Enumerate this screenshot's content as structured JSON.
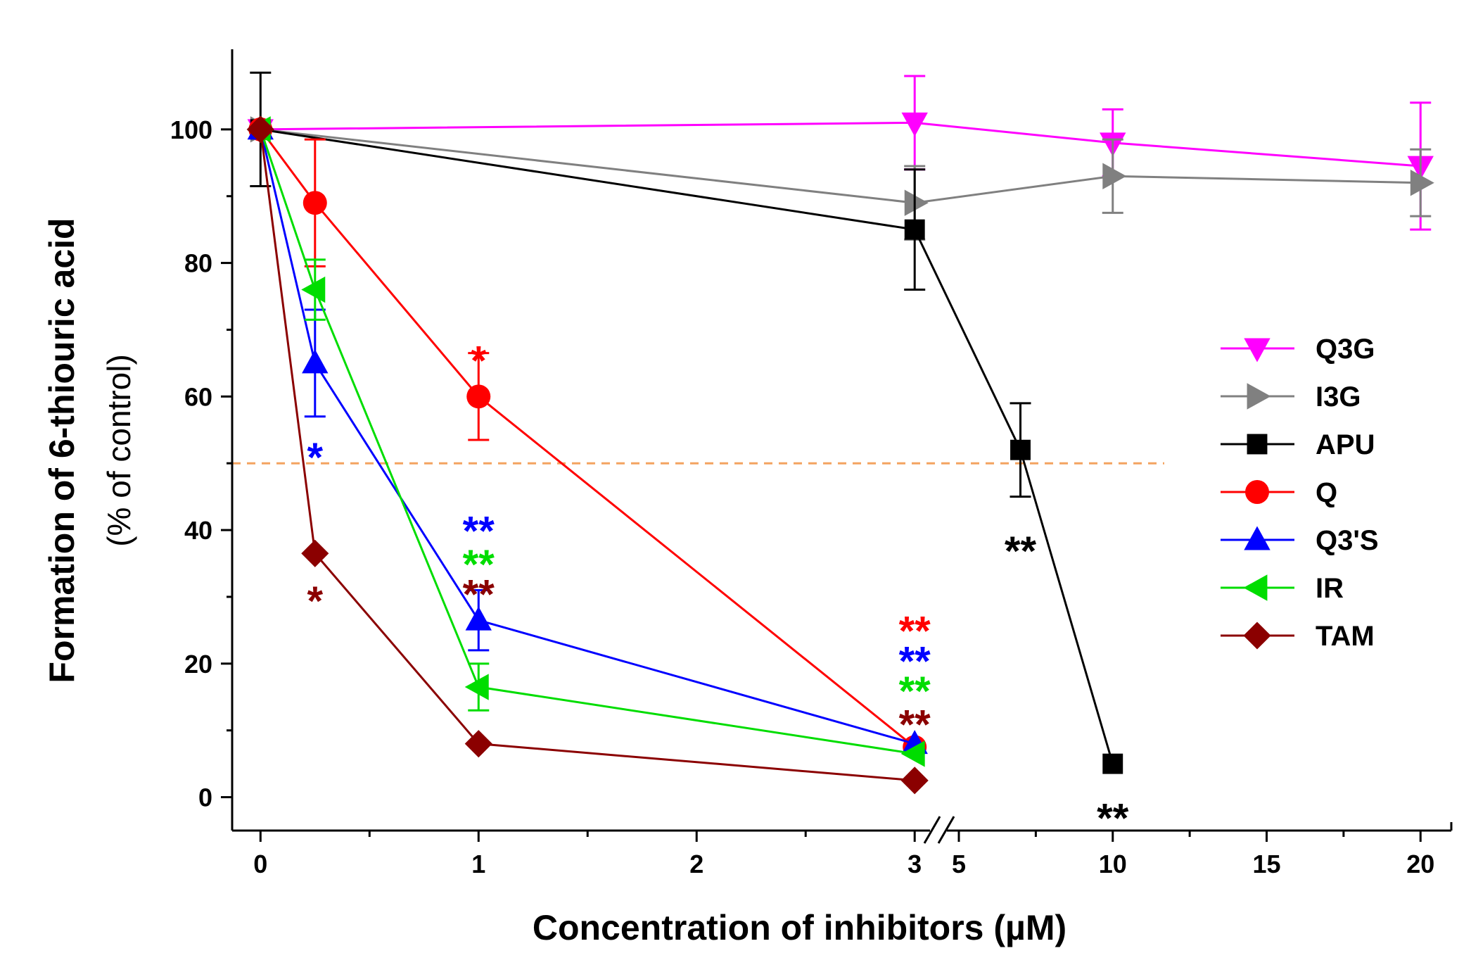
{
  "chart_data": {
    "type": "line",
    "title": "",
    "xlabel": "Concentration of inhibitors (µM)",
    "ylabel": "Formation of 6-thiouric acid",
    "ylabel_sub": "(% of control)",
    "y_range": [
      -5,
      112
    ],
    "y_ticks": [
      0,
      20,
      40,
      60,
      80,
      100
    ],
    "y_tick_labels": [
      "0",
      "20",
      "40",
      "60",
      "80",
      "100"
    ],
    "x_axis_break": "between 3 and 5",
    "x_segment1_range": [
      -0.13,
      3.08
    ],
    "x_segment1_ticks": [
      0,
      1,
      2,
      3
    ],
    "x_segment1_tick_labels": [
      "0",
      "1",
      "2",
      "3"
    ],
    "x_segment2_range": [
      4.2,
      21
    ],
    "x_segment2_ticks": [
      5,
      10,
      15,
      20
    ],
    "x_segment2_tick_labels": [
      "5",
      "10",
      "15",
      "20"
    ],
    "reference_line": {
      "y": 50,
      "color": "#f4a460",
      "style": "dashed"
    },
    "legend_position": "right",
    "series": [
      {
        "name": "Q3G",
        "color": "#ff00ff",
        "marker": "triangle-down",
        "points": [
          {
            "x": 0,
            "y": 100,
            "err": 0
          },
          {
            "x": 3,
            "y": 101,
            "err": 7
          },
          {
            "x": 10,
            "y": 98,
            "err": 5
          },
          {
            "x": 20,
            "y": 94.5,
            "err": 9.5
          }
        ]
      },
      {
        "name": "I3G",
        "color": "#808080",
        "marker": "triangle-right",
        "points": [
          {
            "x": 0,
            "y": 100,
            "err": 0
          },
          {
            "x": 3,
            "y": 89,
            "err": 5.5
          },
          {
            "x": 10,
            "y": 93,
            "err": 5.5
          },
          {
            "x": 20,
            "y": 92,
            "err": 5
          }
        ]
      },
      {
        "name": "APU",
        "color": "#000000",
        "marker": "square",
        "points": [
          {
            "x": 0,
            "y": 100,
            "err": 8.5
          },
          {
            "x": 3,
            "y": 85,
            "err": 9
          },
          {
            "x": 7,
            "y": 52,
            "err": 7
          },
          {
            "x": 10,
            "y": 5,
            "err": 0
          }
        ]
      },
      {
        "name": "Q",
        "color": "#ff0000",
        "marker": "circle",
        "points": [
          {
            "x": 0,
            "y": 100,
            "err": 0
          },
          {
            "x": 0.25,
            "y": 89,
            "err": 9.5
          },
          {
            "x": 1,
            "y": 60,
            "err": 6.5
          },
          {
            "x": 3,
            "y": 7.5,
            "err": 0
          }
        ]
      },
      {
        "name": "Q3'S",
        "color": "#0000ff",
        "marker": "triangle-up",
        "points": [
          {
            "x": 0,
            "y": 100,
            "err": 0
          },
          {
            "x": 0.25,
            "y": 65,
            "err": 8
          },
          {
            "x": 1,
            "y": 26.5,
            "err": 4.5
          },
          {
            "x": 3,
            "y": 8,
            "err": 0
          }
        ]
      },
      {
        "name": "IR",
        "color": "#00dd00",
        "marker": "triangle-left",
        "points": [
          {
            "x": 0,
            "y": 100,
            "err": 0
          },
          {
            "x": 0.25,
            "y": 76,
            "err": 4.5
          },
          {
            "x": 1,
            "y": 16.5,
            "err": 3.5
          },
          {
            "x": 3,
            "y": 6.5,
            "err": 0
          }
        ]
      },
      {
        "name": "TAM",
        "color": "#8b0000",
        "marker": "diamond",
        "points": [
          {
            "x": 0,
            "y": 100,
            "err": 0
          },
          {
            "x": 0.25,
            "y": 36.5,
            "err": 0
          },
          {
            "x": 1,
            "y": 8,
            "err": 0
          },
          {
            "x": 3,
            "y": 2.5,
            "err": 0
          }
        ]
      }
    ],
    "annotations": [
      {
        "text": "*",
        "x": 1,
        "y": 66,
        "color": "#ff0000"
      },
      {
        "text": "*",
        "x": 0.25,
        "y": 51.5,
        "color": "#0000ff"
      },
      {
        "text": "*",
        "x": 0.25,
        "y": 30,
        "color": "#8b0000"
      },
      {
        "text": "**",
        "x": 1,
        "y": 40.5,
        "color": "#0000ff"
      },
      {
        "text": "**",
        "x": 1,
        "y": 35.5,
        "color": "#00dd00"
      },
      {
        "text": "**",
        "x": 1,
        "y": 31,
        "color": "#8b0000"
      },
      {
        "text": "**",
        "x": 3,
        "y": 25.5,
        "color": "#ff0000"
      },
      {
        "text": "**",
        "x": 3,
        "y": 21,
        "color": "#0000ff"
      },
      {
        "text": "**",
        "x": 3,
        "y": 16.5,
        "color": "#00dd00"
      },
      {
        "text": "**",
        "x": 3,
        "y": 11.5,
        "color": "#8b0000"
      },
      {
        "text": "**",
        "x": 7,
        "y": 37.5,
        "color": "#000000"
      },
      {
        "text": "**",
        "x": 10,
        "y": -2.5,
        "color": "#000000"
      }
    ]
  }
}
